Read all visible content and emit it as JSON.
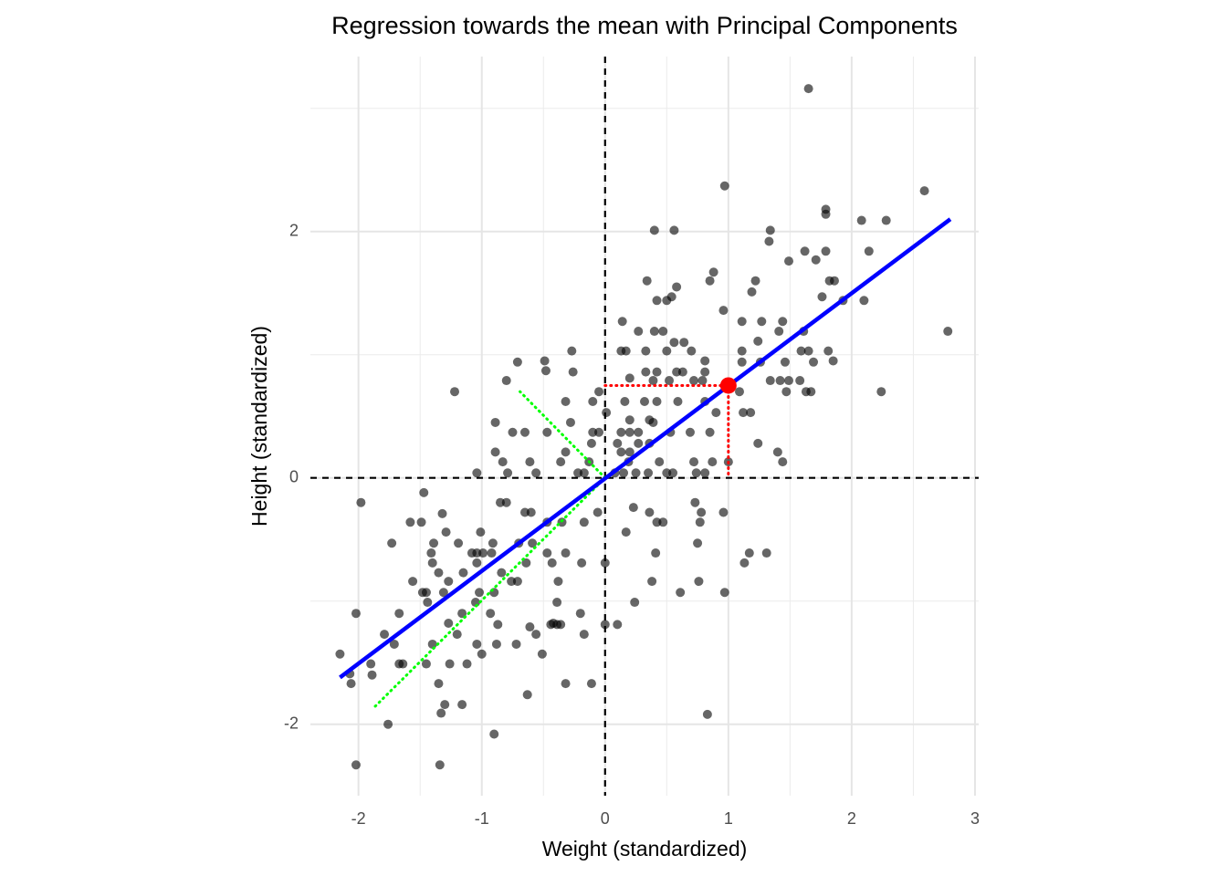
{
  "chart_data": {
    "type": "scatter",
    "title": "Regression towards the mean with Principal Components",
    "xlabel": "Weight (standardized)",
    "ylabel": "Height (standardized)",
    "xlim": [
      -2.39,
      3.03
    ],
    "ylim": [
      -2.58,
      3.42
    ],
    "xticks": [
      -2,
      -1,
      0,
      1,
      2,
      3
    ],
    "yticks": [
      -2,
      0,
      2
    ],
    "xminor": [
      -1.5,
      -0.5,
      0.5,
      1.5,
      2.5
    ],
    "yminor": [
      -1,
      1,
      3
    ],
    "grid": true,
    "point_color": "#000000",
    "x": [
      1.65,
      0.97,
      2.59,
      1.79,
      1.79,
      2.08,
      2.28,
      0.4,
      0.56,
      1.34,
      1.33,
      1.62,
      1.79,
      2.14,
      1.49,
      1.71,
      0.88,
      1.82,
      1.86,
      1.22,
      0.34,
      0.85,
      0.58,
      1.19,
      0.54,
      0.5,
      0.42,
      1.76,
      1.93,
      2.1,
      0.96,
      0.14,
      1.11,
      1.27,
      1.44,
      1.61,
      1.41,
      0.27,
      0.4,
      0.47,
      2.78,
      0.56,
      0.64,
      1.24,
      0.13,
      0.17,
      0.33,
      0.5,
      0.7,
      -0.27,
      1.59,
      1.65,
      1.81,
      1.11,
      -0.71,
      -0.49,
      0.81,
      1.11,
      1.26,
      1.46,
      1.69,
      1.85,
      -0.48,
      -0.26,
      0.33,
      0.42,
      0.58,
      0.63,
      0.81,
      -0.8,
      0.2,
      0.39,
      0.52,
      0.72,
      0.79,
      1.34,
      1.42,
      1.49,
      1.58,
      1.63,
      -1.22,
      -0.05,
      1.47,
      1.67,
      2.24,
      -0.32,
      -0.1,
      0.16,
      0.32,
      0.42,
      0.59,
      0.81,
      1.09,
      0.9,
      1.12,
      1.18,
      0.01,
      -0.89,
      -0.28,
      0.2,
      0.36,
      0.39,
      -0.1,
      -0.05,
      -0.75,
      -0.65,
      -0.47,
      0.13,
      0.2,
      0.27,
      0.53,
      0.69,
      0.85,
      0.1,
      -0.11,
      0.27,
      0.36,
      1.24,
      -0.89,
      -0.32,
      0.13,
      0.2,
      1.4,
      -0.83,
      -0.61,
      -0.13,
      -0.36,
      0.19,
      0.44,
      0.72,
      0.87,
      1.0,
      1.44,
      -1.04,
      -0.79,
      -0.56,
      -0.22,
      -0.17,
      0.08,
      0.15,
      0.25,
      0.35,
      0.5,
      0.55,
      0.74,
      0.81,
      -1.98,
      -1.47,
      -1.32,
      -1.58,
      -1.49,
      -1.29,
      -1.73,
      -1.39,
      -1.19,
      -1.01,
      -0.85,
      -0.8,
      -0.65,
      -0.6,
      -0.47,
      -0.35,
      -0.17,
      -0.06,
      0.23,
      0.36,
      0.42,
      0.47,
      0.73,
      0.78,
      0.96,
      0.77,
      0.17,
      -0.91,
      -0.7,
      -0.59,
      0.75,
      0.41,
      -1.08,
      -1.04,
      -0.99,
      -0.92,
      -1.41,
      -0.47,
      -0.32,
      1.17,
      1.31,
      1.13,
      -1.4,
      -1.04,
      -0.64,
      -0.43,
      -0.19,
      0.0,
      -1.35,
      -1.15,
      -0.84,
      -1.27,
      -0.76,
      -0.71,
      -0.38,
      0.38,
      0.76,
      -1.56,
      -1.31,
      -1.45,
      -1.48,
      -1.02,
      -0.9,
      0.61,
      0.97,
      -1.44,
      -1.05,
      -0.39,
      0.24,
      -2.02,
      -1.67,
      -1.16,
      -0.93,
      -1.27,
      -0.87,
      -0.42,
      -0.2,
      -0.44,
      -0.39,
      -0.36,
      0.0,
      0.1,
      -0.61,
      -1.79,
      -1.2,
      -1.71,
      -1.4,
      -1.04,
      -0.88,
      -0.72,
      -0.56,
      -0.17,
      -2.15,
      -1.0,
      -0.51,
      -1.9,
      -1.67,
      -1.64,
      -1.45,
      -1.26,
      -1.12,
      -2.07,
      -1.89,
      -2.06,
      -1.35,
      -0.32,
      -0.11,
      -0.63,
      -1.3,
      -1.16,
      -1.33,
      0.83,
      -1.76,
      -0.9,
      -2.02,
      -1.34
    ],
    "y": [
      3.16,
      2.37,
      2.33,
      2.18,
      2.14,
      2.09,
      2.09,
      2.01,
      2.01,
      2.01,
      1.92,
      1.84,
      1.84,
      1.84,
      1.76,
      1.77,
      1.67,
      1.6,
      1.6,
      1.6,
      1.6,
      1.6,
      1.55,
      1.51,
      1.47,
      1.44,
      1.44,
      1.47,
      1.44,
      1.44,
      1.36,
      1.27,
      1.27,
      1.27,
      1.27,
      1.19,
      1.19,
      1.19,
      1.19,
      1.19,
      1.19,
      1.1,
      1.1,
      1.11,
      1.03,
      1.03,
      1.03,
      1.03,
      1.03,
      1.03,
      1.03,
      1.03,
      1.03,
      1.03,
      0.94,
      0.95,
      0.95,
      0.94,
      0.94,
      0.94,
      0.94,
      0.95,
      0.87,
      0.86,
      0.86,
      0.86,
      0.86,
      0.86,
      0.86,
      0.79,
      0.81,
      0.79,
      0.79,
      0.79,
      0.79,
      0.79,
      0.79,
      0.79,
      0.79,
      0.7,
      0.7,
      0.7,
      0.7,
      0.7,
      0.7,
      0.62,
      0.62,
      0.62,
      0.62,
      0.62,
      0.62,
      0.62,
      0.7,
      0.53,
      0.53,
      0.53,
      0.53,
      0.45,
      0.45,
      0.47,
      0.47,
      0.45,
      0.37,
      0.37,
      0.37,
      0.37,
      0.37,
      0.37,
      0.37,
      0.37,
      0.37,
      0.37,
      0.37,
      0.28,
      0.28,
      0.28,
      0.28,
      0.28,
      0.21,
      0.21,
      0.21,
      0.21,
      0.21,
      0.13,
      0.13,
      0.13,
      0.13,
      0.13,
      0.13,
      0.13,
      0.13,
      0.13,
      0.13,
      0.04,
      0.04,
      0.04,
      0.04,
      0.04,
      0.04,
      0.04,
      0.04,
      0.04,
      0.04,
      0.04,
      0.04,
      0.04,
      -0.2,
      -0.12,
      -0.29,
      -0.36,
      -0.36,
      -0.44,
      -0.53,
      -0.53,
      -0.53,
      -0.44,
      -0.2,
      -0.2,
      -0.28,
      -0.28,
      -0.36,
      -0.36,
      -0.36,
      -0.28,
      -0.24,
      -0.28,
      -0.36,
      -0.36,
      -0.2,
      -0.28,
      -0.28,
      -0.36,
      -0.44,
      -0.53,
      -0.53,
      -0.53,
      -0.53,
      -0.61,
      -0.61,
      -0.61,
      -0.61,
      -0.61,
      -0.61,
      -0.61,
      -0.61,
      -0.61,
      -0.61,
      -0.69,
      -0.69,
      -0.69,
      -0.69,
      -0.69,
      -0.69,
      -0.69,
      -0.77,
      -0.77,
      -0.77,
      -0.84,
      -0.84,
      -0.84,
      -0.84,
      -0.84,
      -0.84,
      -0.84,
      -0.93,
      -0.93,
      -0.93,
      -0.93,
      -0.93,
      -0.93,
      -0.93,
      -1.01,
      -1.01,
      -1.01,
      -1.01,
      -1.1,
      -1.1,
      -1.1,
      -1.1,
      -1.18,
      -1.19,
      -1.18,
      -1.1,
      -1.19,
      -1.19,
      -1.19,
      -1.19,
      -1.19,
      -1.21,
      -1.27,
      -1.27,
      -1.35,
      -1.35,
      -1.35,
      -1.35,
      -1.35,
      -1.27,
      -1.27,
      -1.43,
      -1.43,
      -1.43,
      -1.51,
      -1.51,
      -1.51,
      -1.51,
      -1.51,
      -1.51,
      -1.59,
      -1.6,
      -1.67,
      -1.67,
      -1.67,
      -1.67,
      -1.76,
      -1.84,
      -1.84,
      -1.91,
      -1.92,
      -2.0,
      -2.08,
      -2.33,
      -2.33
    ],
    "reference_lines": {
      "x": 0,
      "y": 0,
      "color": "#000000"
    },
    "regression_line": {
      "x": [
        -2.15,
        2.8
      ],
      "y": [
        -1.62,
        2.1
      ],
      "color": "#0000ff"
    },
    "highlight": {
      "x": 1,
      "y": 0.75,
      "color": "#ff0000"
    },
    "pc_segments": {
      "color": "#00ff00",
      "segments": [
        {
          "x": [
            0,
            -0.69
          ],
          "y": [
            0,
            0.7
          ]
        },
        {
          "x": [
            0,
            -1.87
          ],
          "y": [
            0,
            -1.86
          ]
        }
      ]
    }
  }
}
